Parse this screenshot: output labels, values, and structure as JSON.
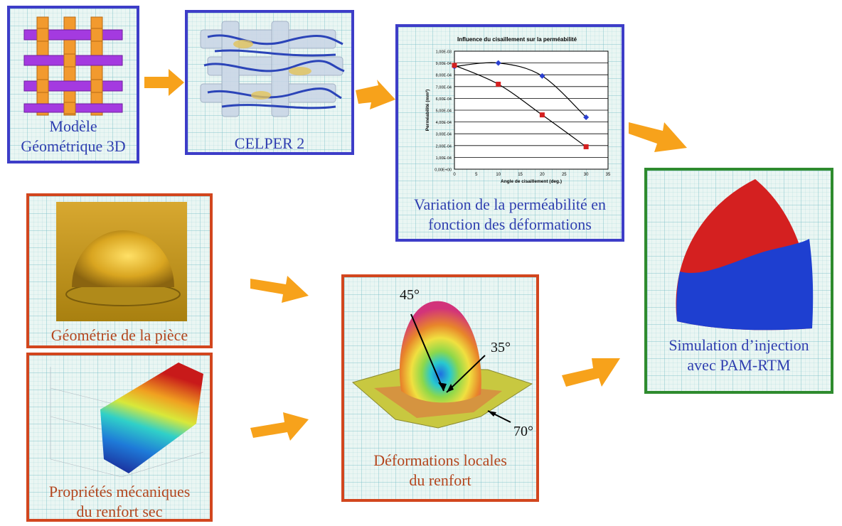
{
  "boxes": {
    "geometric_model": {
      "caption_line1": "Modèle",
      "caption_line2": "Géométrique 3D"
    },
    "celper": {
      "caption": "CELPER 2"
    },
    "permeability": {
      "caption_line1": "Variation de la perméabilité en",
      "caption_line2": "fonction des déformations"
    },
    "part_geometry": {
      "caption": "Géométrie de la pièce"
    },
    "mechanical": {
      "caption_line1": "Propriétés mécaniques",
      "caption_line2": "du renfort sec"
    },
    "local_deformations": {
      "caption_line1": "Déformations locales",
      "caption_line2": "du renfort",
      "angle_labels": [
        "45°",
        "35°",
        "70°"
      ]
    },
    "simulation": {
      "caption_line1": "Simulation d’injection",
      "caption_line2": "avec PAM-RTM"
    }
  },
  "chart_data": {
    "type": "line",
    "title": "Influence du cisaillement sur la perméabilité",
    "xlabel": "Angle de cisaillement (deg.)",
    "ylabel": "Perméabilité (mm²)",
    "xlim": [
      0,
      35
    ],
    "ylim": [
      0,
      1.0
    ],
    "x_ticks": [
      "0",
      "5",
      "10",
      "15",
      "20",
      "25",
      "30",
      "35"
    ],
    "y_ticks": [
      "0,00E+00",
      "1,00E-04",
      "2,00E-04",
      "3,00E-04",
      "4,00E-04",
      "5,00E-04",
      "6,00E-04",
      "7,00E-04",
      "8,00E-04",
      "9,00E-04",
      "1,00E-03"
    ],
    "series": [
      {
        "color": "#2a3fd0",
        "points": [
          [
            0,
            0.87
          ],
          [
            10,
            0.9
          ],
          [
            20,
            0.79
          ],
          [
            30,
            0.44
          ]
        ]
      },
      {
        "color": "#d42020",
        "points": [
          [
            0,
            0.88
          ],
          [
            10,
            0.72
          ],
          [
            20,
            0.46
          ],
          [
            30,
            0.19
          ]
        ]
      }
    ],
    "grid": true
  },
  "colors": {
    "blue_border": "#3d3dc8",
    "red_border": "#d2461e",
    "green_border": "#2e8b2e",
    "arrow": "#f7a21b"
  }
}
